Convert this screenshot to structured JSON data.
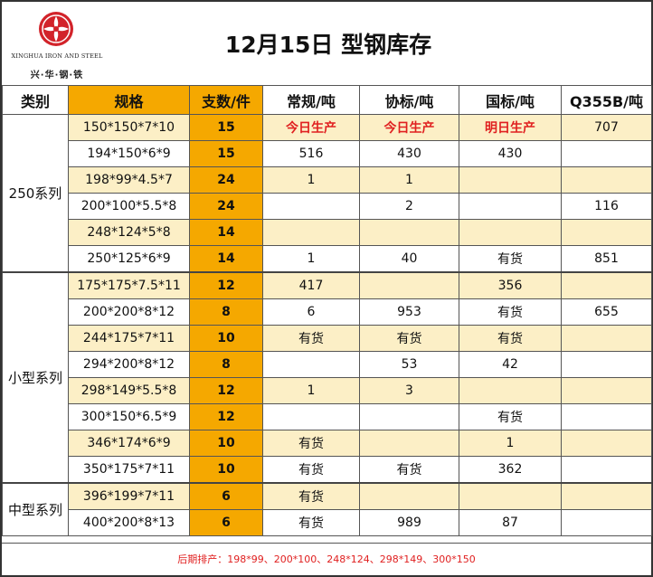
{
  "logo": {
    "en_text": "XINGHUA IRON AND STEEL",
    "cn_text": "兴·华·钢·铁",
    "brand_color": "#d2232a"
  },
  "title": "12月15日  型钢库存",
  "headers": [
    "类别",
    "规格",
    "支数/件",
    "常规/吨",
    "协标/吨",
    "国标/吨",
    "Q355B/吨"
  ],
  "groups": [
    {
      "category": "250系列",
      "rows": [
        {
          "spec": "150*150*7*10",
          "qty": "15",
          "cg": "今日生产",
          "xb": "今日生产",
          "gb": "明日生产",
          "q355": "707",
          "red": [
            true,
            true,
            true,
            false
          ]
        },
        {
          "spec": "194*150*6*9",
          "qty": "15",
          "cg": "516",
          "xb": "430",
          "gb": "430",
          "q355": ""
        },
        {
          "spec": "198*99*4.5*7",
          "qty": "24",
          "cg": "1",
          "xb": "1",
          "gb": "",
          "q355": ""
        },
        {
          "spec": "200*100*5.5*8",
          "qty": "24",
          "cg": "",
          "xb": "2",
          "gb": "",
          "q355": "116"
        },
        {
          "spec": "248*124*5*8",
          "qty": "14",
          "cg": "",
          "xb": "",
          "gb": "",
          "q355": ""
        },
        {
          "spec": "250*125*6*9",
          "qty": "14",
          "cg": "1",
          "xb": "40",
          "gb": "有货",
          "q355": "851"
        }
      ]
    },
    {
      "category": "小型系列",
      "rows": [
        {
          "spec": "175*175*7.5*11",
          "qty": "12",
          "cg": "417",
          "xb": "",
          "gb": "356",
          "q355": ""
        },
        {
          "spec": "200*200*8*12",
          "qty": "8",
          "cg": "6",
          "xb": "953",
          "gb": "有货",
          "q355": "655"
        },
        {
          "spec": "244*175*7*11",
          "qty": "10",
          "cg": "有货",
          "xb": "有货",
          "gb": "有货",
          "q355": ""
        },
        {
          "spec": "294*200*8*12",
          "qty": "8",
          "cg": "",
          "xb": "53",
          "gb": "42",
          "q355": ""
        },
        {
          "spec": "298*149*5.5*8",
          "qty": "12",
          "cg": "1",
          "xb": "3",
          "gb": "",
          "q355": ""
        },
        {
          "spec": "300*150*6.5*9",
          "qty": "12",
          "cg": "",
          "xb": "",
          "gb": "有货",
          "q355": ""
        },
        {
          "spec": "346*174*6*9",
          "qty": "10",
          "cg": "有货",
          "xb": "",
          "gb": "1",
          "q355": ""
        },
        {
          "spec": "350*175*7*11",
          "qty": "10",
          "cg": "有货",
          "xb": "有货",
          "gb": "362",
          "q355": ""
        }
      ]
    },
    {
      "category": "中型系列",
      "rows": [
        {
          "spec": "396*199*7*11",
          "qty": "6",
          "cg": "有货",
          "xb": "",
          "gb": "",
          "q355": ""
        },
        {
          "spec": "400*200*8*13",
          "qty": "6",
          "cg": "有货",
          "xb": "989",
          "gb": "87",
          "q355": ""
        }
      ]
    }
  ],
  "footer": "后期排产：198*99、200*100、248*124、298*149、300*150"
}
